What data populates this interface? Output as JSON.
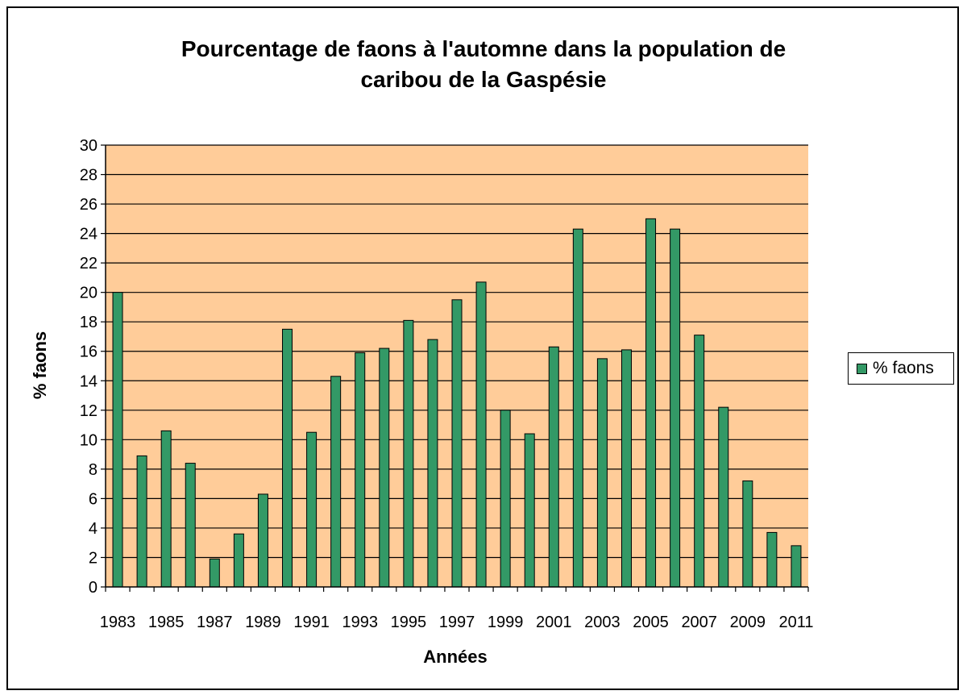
{
  "chart_data": {
    "type": "bar",
    "title": [
      "Pourcentage de faons à l'automne dans la population de",
      "caribou de la Gaspésie"
    ],
    "xlabel": "Années",
    "ylabel": "% faons",
    "ylim": [
      0,
      30
    ],
    "yticks": [
      0,
      2,
      4,
      6,
      8,
      10,
      12,
      14,
      16,
      18,
      20,
      22,
      24,
      26,
      28,
      30
    ],
    "grid": true,
    "legend_position": "right",
    "colors": {
      "bar": "#339966",
      "plot_background": "#FFCC99",
      "grid": "#000000"
    },
    "categories": [
      1983,
      1984,
      1985,
      1986,
      1987,
      1988,
      1989,
      1990,
      1991,
      1992,
      1993,
      1994,
      1995,
      1996,
      1997,
      1998,
      1999,
      2000,
      2001,
      2002,
      2003,
      2004,
      2005,
      2006,
      2007,
      2008,
      2009,
      2010,
      2011
    ],
    "xtick_labels": [
      "1983",
      "1985",
      "1987",
      "1989",
      "1991",
      "1993",
      "1995",
      "1997",
      "1999",
      "2001",
      "2003",
      "2005",
      "2007",
      "2009",
      "2011"
    ],
    "series": [
      {
        "name": "% faons",
        "values": [
          20.0,
          8.9,
          10.6,
          8.4,
          1.9,
          3.6,
          6.3,
          17.5,
          10.5,
          14.3,
          15.9,
          16.2,
          18.1,
          16.8,
          19.5,
          20.7,
          12.0,
          10.4,
          16.3,
          24.3,
          15.5,
          16.1,
          25.0,
          24.3,
          17.1,
          12.2,
          7.2,
          3.7,
          2.8
        ]
      }
    ]
  }
}
